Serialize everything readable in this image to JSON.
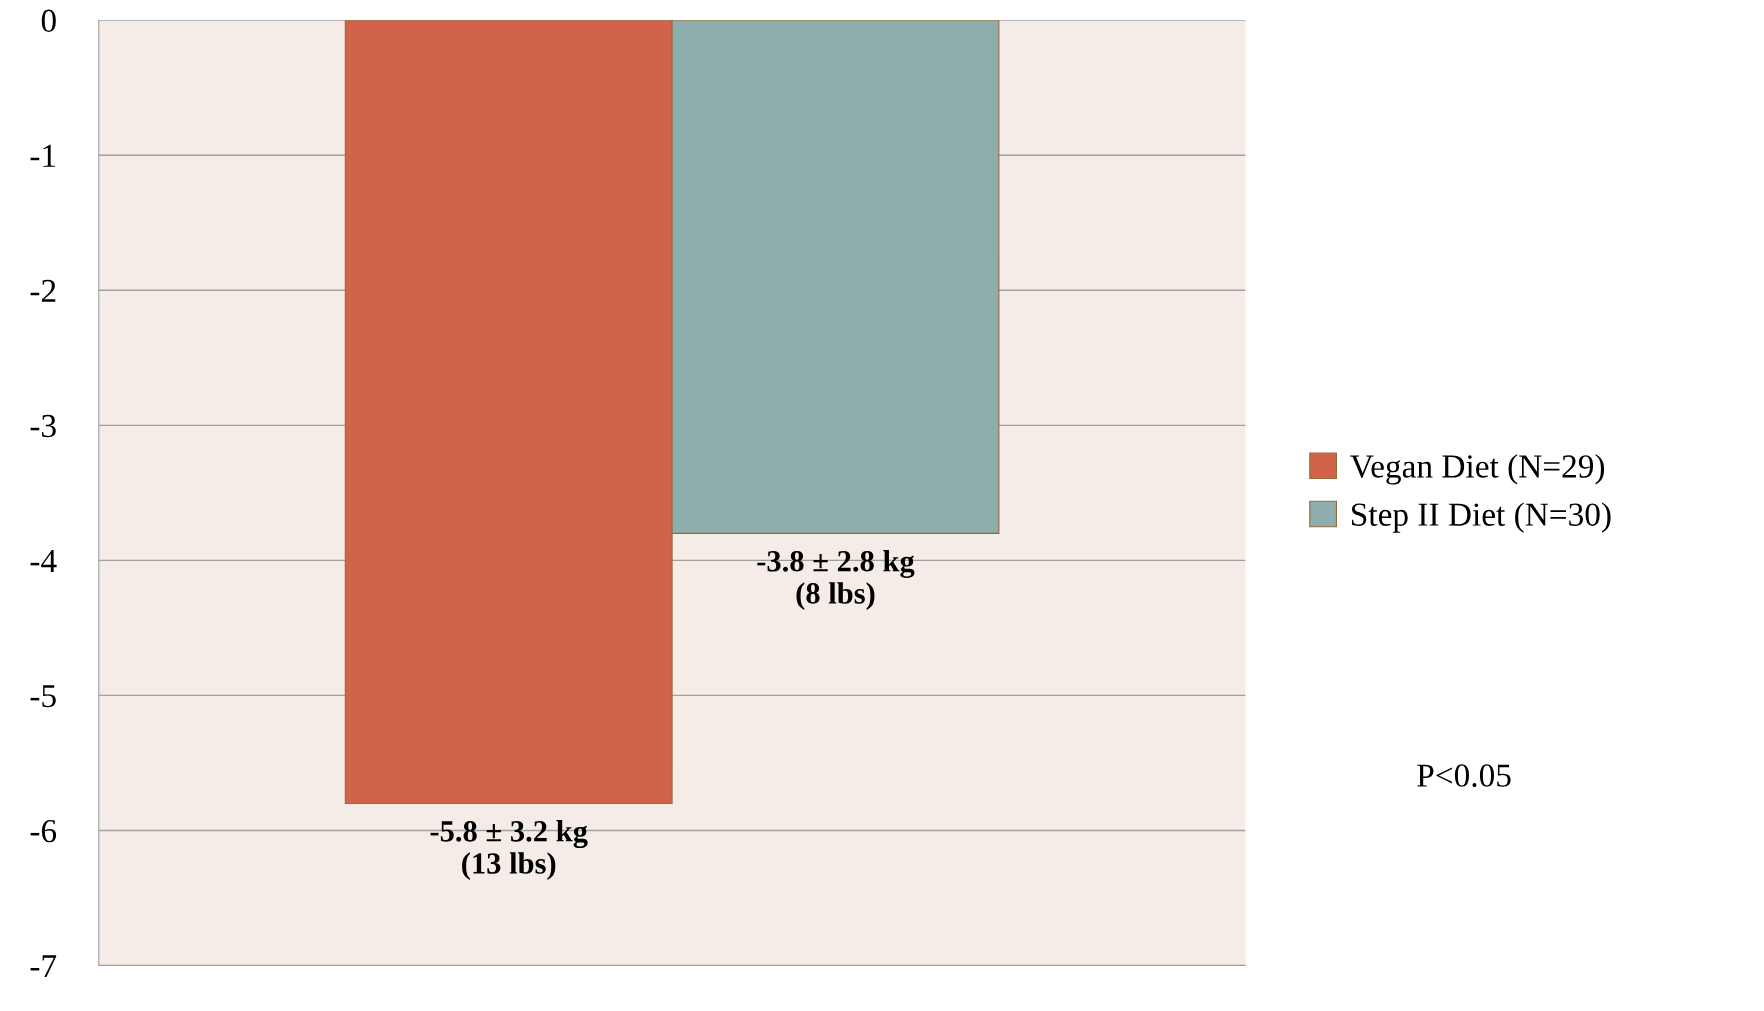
{
  "chart_data": {
    "type": "bar",
    "categories": [
      null
    ],
    "series": [
      {
        "name": "Vegan Diet (N=29)",
        "color": "#d0634a",
        "values": [
          -5.8
        ],
        "value_labels": [
          "-5.8 ± 3.2 kg\n(13 lbs)"
        ]
      },
      {
        "name": "Step II Diet (N=30)",
        "color": "#8daead",
        "values": [
          -3.8
        ],
        "value_labels": [
          "-3.8 ± 2.8 kg\n(8 lbs)"
        ]
      }
    ],
    "ylim": [
      -7,
      0
    ],
    "yticks": [
      0,
      -1,
      -2,
      -3,
      -4,
      -5,
      -6,
      -7
    ],
    "grid": "y",
    "legend": "right",
    "annotations": [
      "P<0.05"
    ]
  }
}
